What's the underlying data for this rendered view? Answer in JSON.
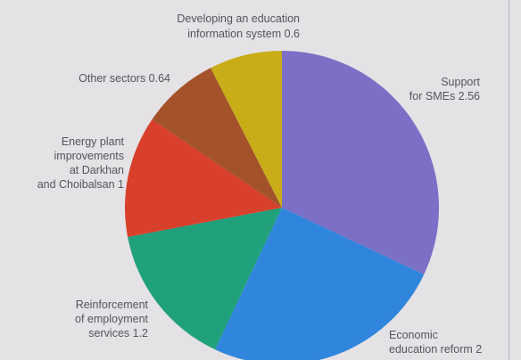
{
  "chart_data": {
    "type": "pie",
    "slices": [
      {
        "label": [
          "Support",
          "for SMEs 2.56"
        ],
        "value": 2.56,
        "color": "#7b6fc6"
      },
      {
        "label": [
          "Economic",
          "education reform 2"
        ],
        "value": 2.0,
        "color": "#2f86dc"
      },
      {
        "label": [
          "Reinforcement",
          "of employment",
          "services 1.2"
        ],
        "value": 1.2,
        "color": "#21a07c"
      },
      {
        "label": [
          "Energy plant",
          "improvements",
          "at Darkhan",
          "and Choibalsan 1"
        ],
        "value": 1.0,
        "color": "#d8402c"
      },
      {
        "label": [
          "Other sectors 0.64"
        ],
        "value": 0.64,
        "color": "#a4522a"
      },
      {
        "label": [
          "Developing an education",
          "information system 0.6"
        ],
        "value": 0.6,
        "color": "#c8ad18"
      }
    ]
  }
}
